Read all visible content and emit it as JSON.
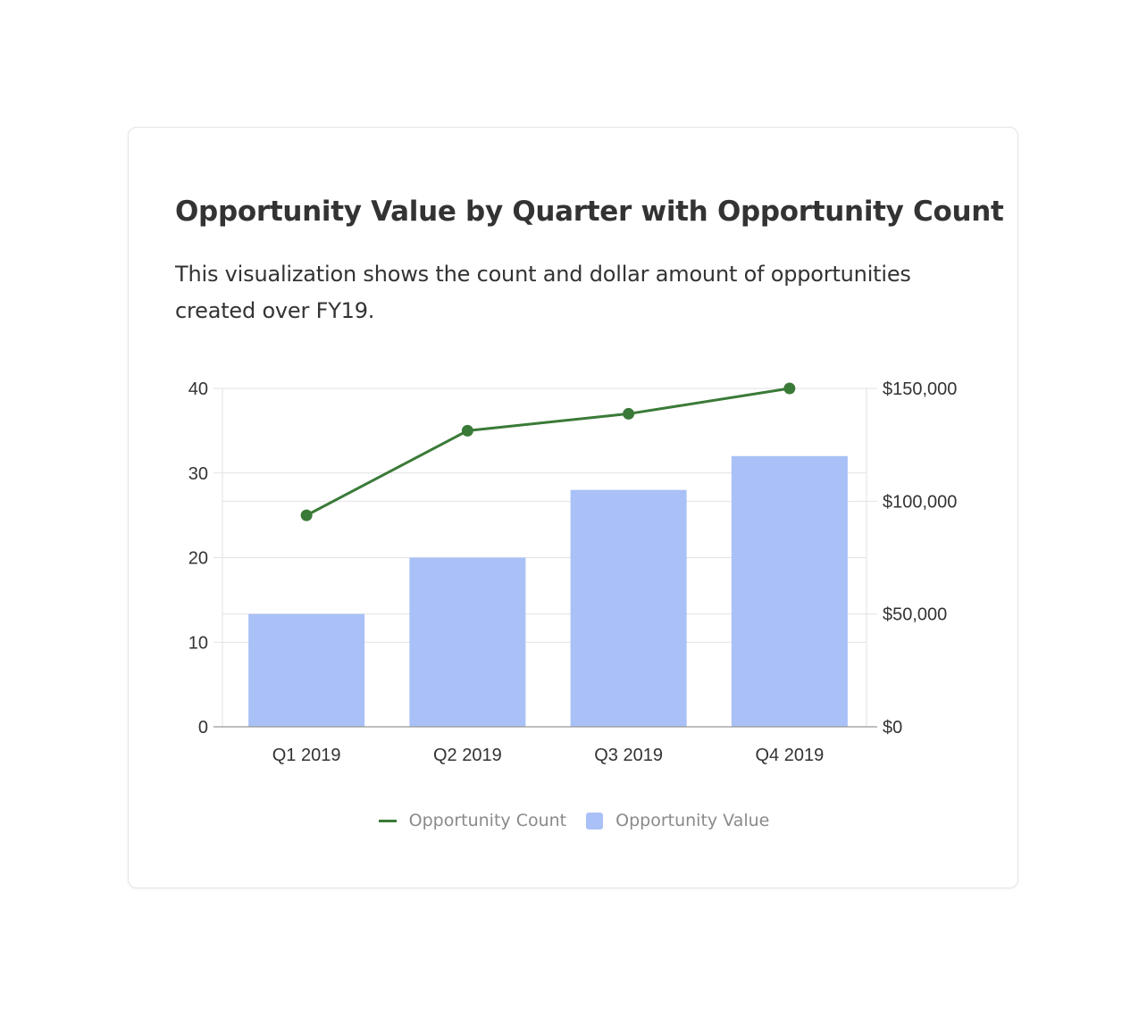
{
  "title": "Opportunity Value by Quarter with Opportunity Count",
  "subtitle": "This visualization shows the count and dollar amount of opportunities created over FY19.",
  "colors": {
    "bar": "#a9c1f7",
    "line": "#3a7a38",
    "grid": "#e2e2e2",
    "axis": "#999999",
    "text": "#333333"
  },
  "chart_data": {
    "type": "bar",
    "categories": [
      "Q1 2019",
      "Q2 2019",
      "Q3 2019",
      "Q4 2019"
    ],
    "series": [
      {
        "name": "Opportunity Value",
        "type": "bar",
        "axis": "right",
        "values": [
          50000,
          75000,
          105000,
          120000
        ]
      },
      {
        "name": "Opportunity Count",
        "type": "line",
        "axis": "left",
        "values": [
          25,
          35,
          37,
          40
        ]
      }
    ],
    "left_axis": {
      "range": [
        0,
        40
      ],
      "ticks": [
        0,
        10,
        20,
        30,
        40
      ],
      "tick_labels": [
        "0",
        "10",
        "20",
        "30",
        "40"
      ]
    },
    "right_axis": {
      "range": [
        0,
        150000
      ],
      "ticks": [
        0,
        50000,
        100000,
        150000
      ],
      "tick_labels": [
        "$0",
        "$50,000",
        "$100,000",
        "$150,000"
      ]
    },
    "grid": true,
    "legend": "bottom-center"
  }
}
